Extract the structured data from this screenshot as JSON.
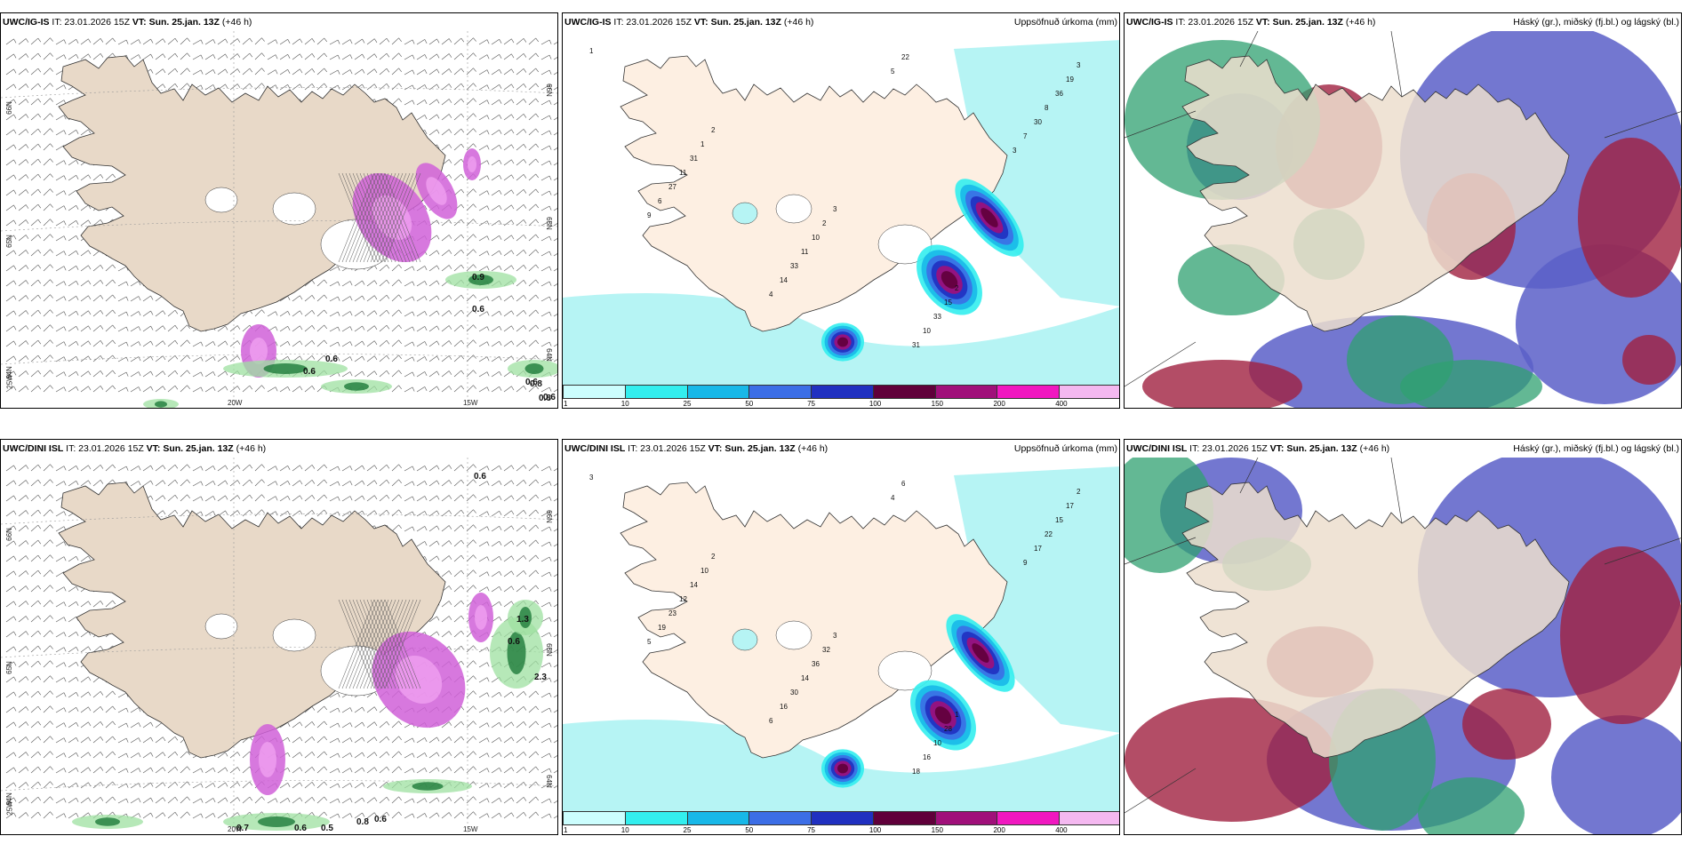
{
  "panels": [
    {
      "id": "p1",
      "model": "UWC/IG-IS",
      "it": "IT: 23.01.2026 15Z",
      "vt_label": "VT:",
      "vt": "Sun. 25.jan. 13Z",
      "lead": "(+46 h)",
      "right": "",
      "kind": "wind",
      "lat_labels": [
        "66N",
        "65N",
        "64N"
      ],
      "lon_labels": [
        "20W",
        "15W"
      ],
      "left_label": "25W",
      "values": [
        "0.9",
        "0.6",
        "0.6",
        "0.6",
        "0.6",
        "0.6",
        "0.8",
        "0.8"
      ]
    },
    {
      "id": "p2",
      "model": "UWC/IG-IS",
      "it": "IT: 23.01.2026 15Z",
      "vt_label": "VT:",
      "vt": "Sun. 25.jan. 13Z",
      "lead": "(+46 h)",
      "right": "Uppsöfnuð úrkoma (mm)",
      "kind": "precip",
      "values": [
        "1",
        "2",
        "3",
        "2",
        "3",
        "1",
        "2",
        "15",
        "19",
        "31",
        "10",
        "33",
        "36",
        "11",
        "11",
        "10",
        "8",
        "27",
        "33",
        "31",
        "30",
        "6",
        "14",
        "22",
        "7",
        "9",
        "4",
        "5",
        "3"
      ]
    },
    {
      "id": "p3",
      "model": "UWC/IG-IS",
      "it": "IT: 23.01.2026 15Z",
      "vt_label": "VT:",
      "vt": "Sun. 25.jan. 13Z",
      "lead": "(+46 h)",
      "right": "Háský (gr.), miðský (fj.bl.) og lágský (bl.)",
      "kind": "cloud"
    },
    {
      "id": "p4",
      "model": "UWC/DINI ISL",
      "it": "IT: 23.01.2026 15Z",
      "vt_label": "VT:",
      "vt": "Sun. 25.jan. 13Z",
      "lead": "(+46 h)",
      "right": "",
      "kind": "wind",
      "lat_labels": [
        "66N",
        "65N",
        "64N"
      ],
      "lon_labels": [
        "20W",
        "15W"
      ],
      "left_label": "25W",
      "values": [
        "0.6",
        "0.7",
        "0.6",
        "0.5",
        "0.8",
        "0.6",
        "0.6",
        "1.3",
        "2.3"
      ]
    },
    {
      "id": "p5",
      "model": "UWC/DINI ISL",
      "it": "IT: 23.01.2026 15Z",
      "vt_label": "VT:",
      "vt": "Sun. 25.jan. 13Z",
      "lead": "(+46 h)",
      "right": "Uppsöfnuð úrkoma (mm)",
      "kind": "precip",
      "values": [
        "3",
        "2",
        "3",
        "1",
        "2",
        "10",
        "32",
        "28",
        "17",
        "14",
        "36",
        "10",
        "15",
        "12",
        "14",
        "16",
        "22",
        "23",
        "30",
        "18",
        "17",
        "19",
        "16",
        "6",
        "9",
        "5",
        "6",
        "4"
      ]
    },
    {
      "id": "p6",
      "model": "UWC/DINI ISL",
      "it": "IT: 23.01.2026 15Z",
      "vt_label": "VT:",
      "vt": "Sun. 25.jan. 13Z",
      "lead": "(+46 h)",
      "right": "Háský (gr.), miðský (fj.bl.) og lágský (bl.)",
      "kind": "cloud"
    }
  ],
  "colorbar": {
    "ticks": [
      "1",
      "10",
      "25",
      "50",
      "75",
      "100",
      "150",
      "200",
      "400"
    ],
    "colors": [
      "#ccfefe",
      "#33eeee",
      "#18b8e8",
      "#3c6ee6",
      "#2030c0",
      "#60003a",
      "#a0107a",
      "#f018c0",
      "#f4b8f0"
    ]
  }
}
